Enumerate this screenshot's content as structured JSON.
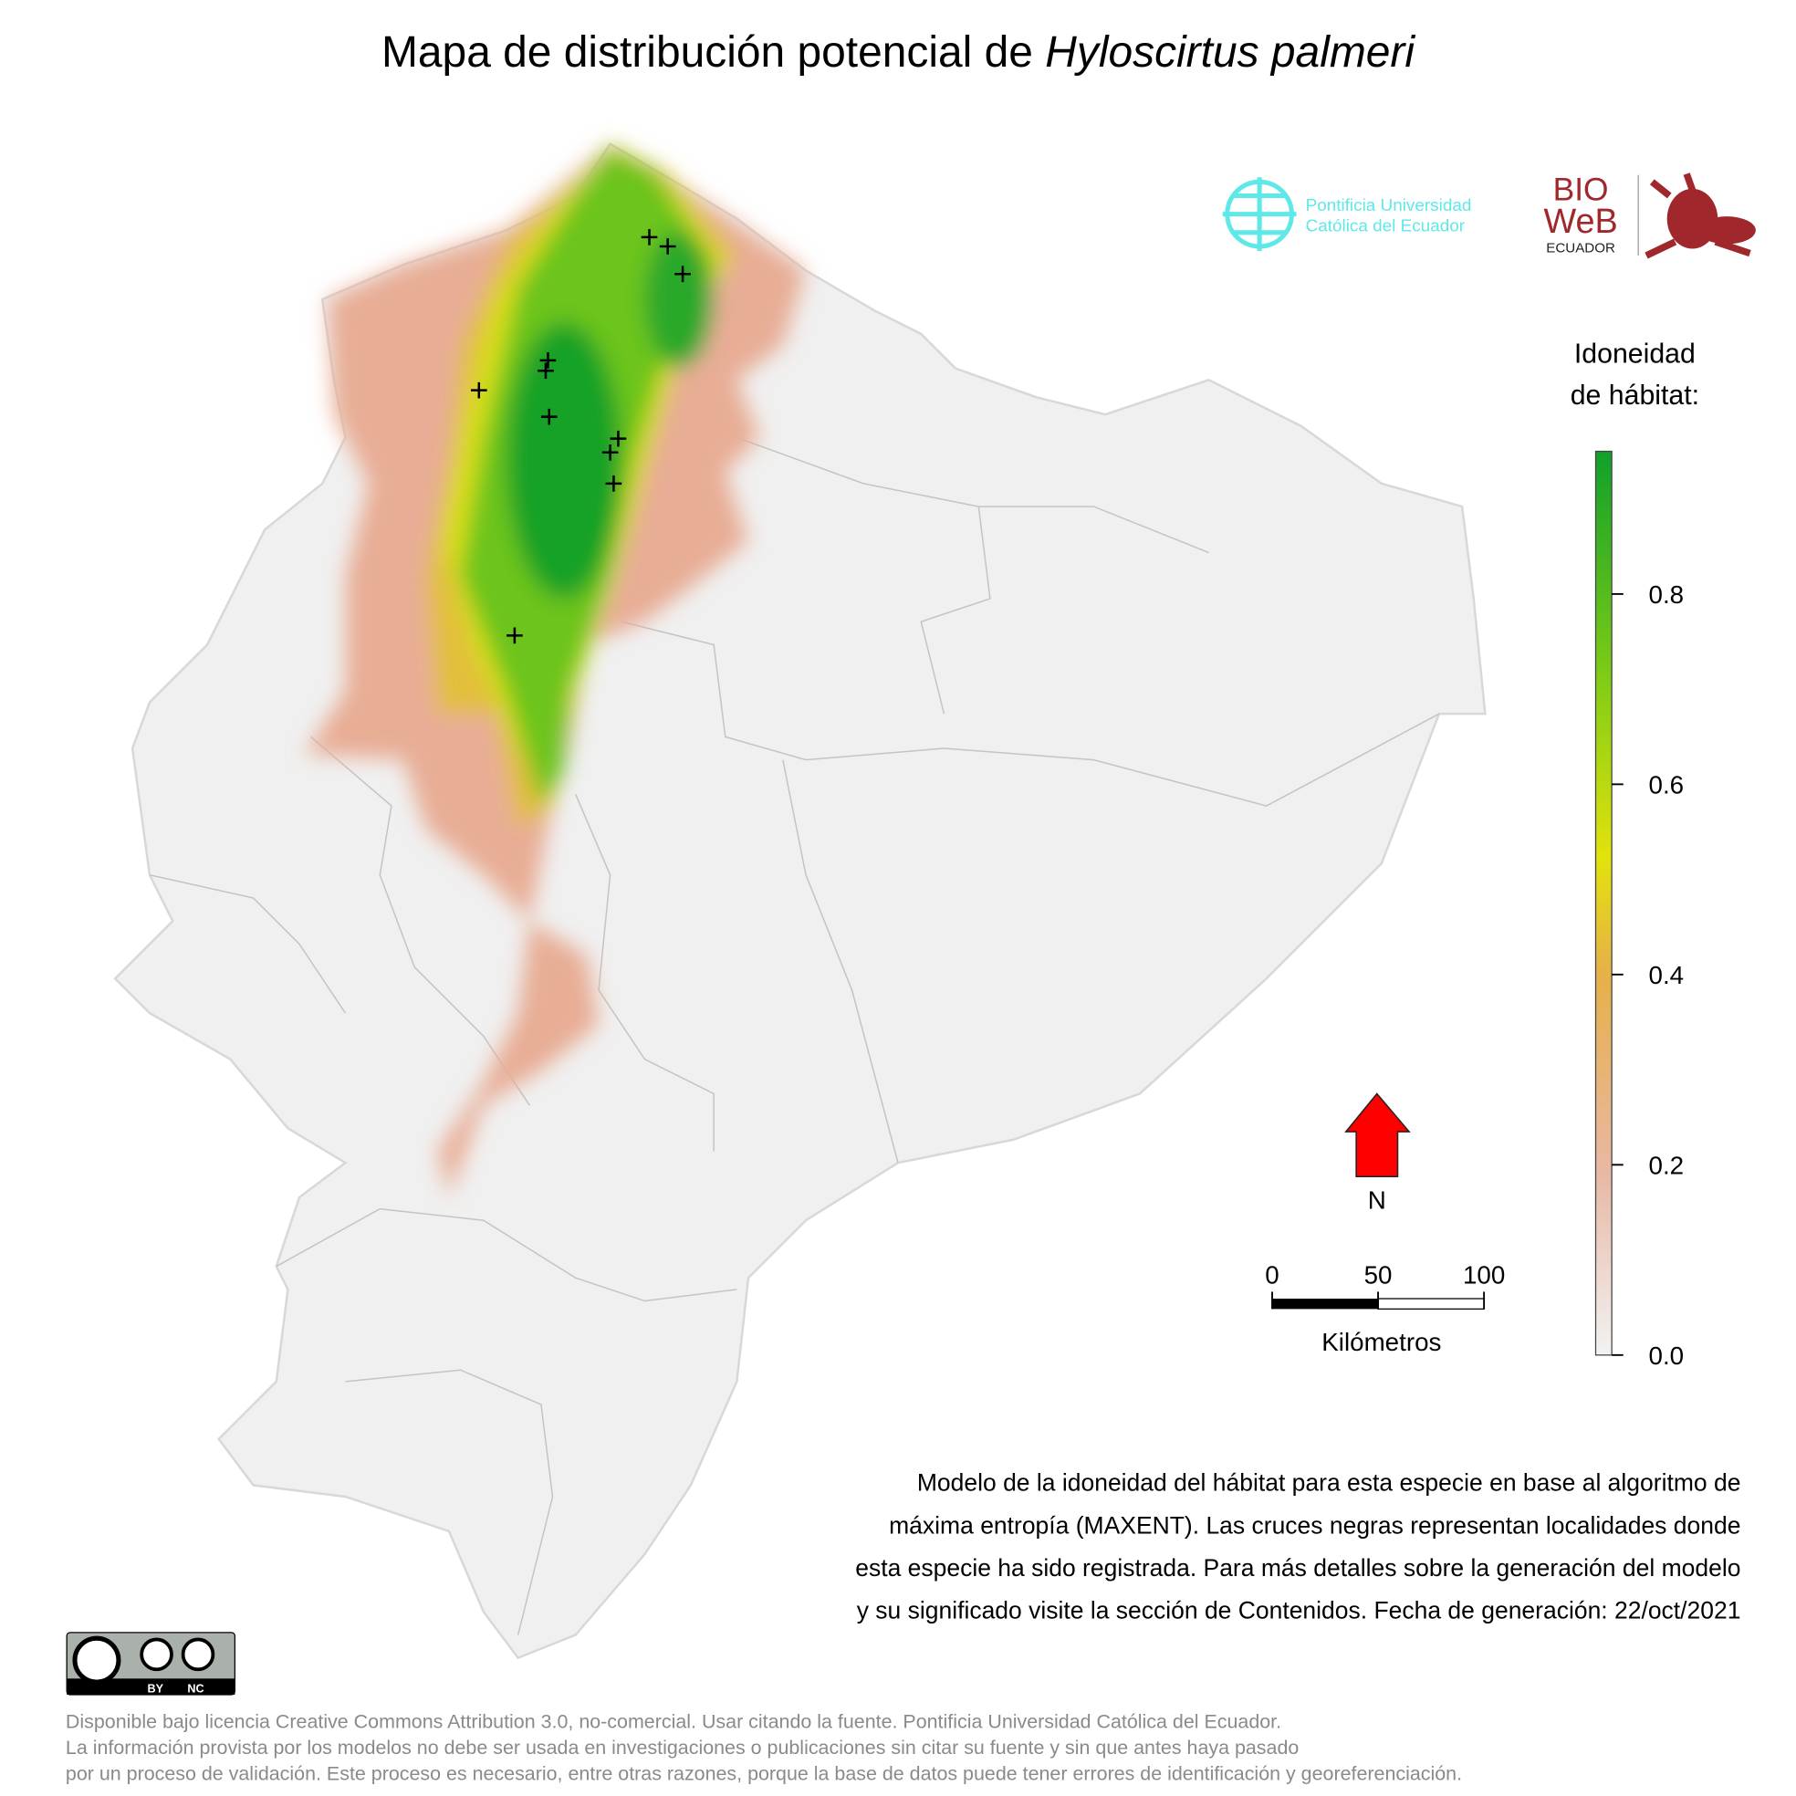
{
  "title": {
    "text": "Mapa de distribución potencial de ",
    "species": "Hyloscirtus palmeri"
  },
  "logos": {
    "puce": [
      "Pontificia Universidad",
      "Católica del Ecuador"
    ],
    "bioweb": {
      "top": "BIO",
      "middle": "WeB",
      "bottom": "ECUADOR"
    }
  },
  "legend": {
    "title": [
      "Idoneidad",
      "de hábitat:"
    ],
    "lim": [
      0,
      0.95
    ],
    "ticks": [
      {
        "value": 0,
        "label": "0.0"
      },
      0.2,
      0.4,
      0.6,
      0.8
    ]
  },
  "north": "N",
  "scale_bar": {
    "lim": [
      0,
      100
    ],
    "ticks": [
      0,
      50,
      100
    ],
    "unit": "Kilómetros"
  },
  "description": [
    "Modelo de la idoneidad del hábitat para esta especie en base al algoritmo de",
    "máxima entropía (MAXENT). Las cruces negras representan localidades donde",
    "esta especie ha sido registrada. Para más detalles sobre la generación del modelo",
    "y su significado visite la sección de Contenidos. Fecha de generación: 22/oct/2021"
  ],
  "license_badge": [
    "BY",
    "NC"
  ],
  "license": [
    "Disponible bajo licencia Creative Commons Attribution 3.0, no-comercial. Usar citando la fuente. Pontificia Universidad Católica del Ecuador.",
    "La información provista por los modelos no debe ser usada en investigaciones o publicaciones sin citar su fuente y sin que antes haya pasado",
    "por un proceso de validación. Este proceso es necesario, entre otras razones, porque la base de datos puede tener errores de identificación y georeferenciación."
  ]
}
